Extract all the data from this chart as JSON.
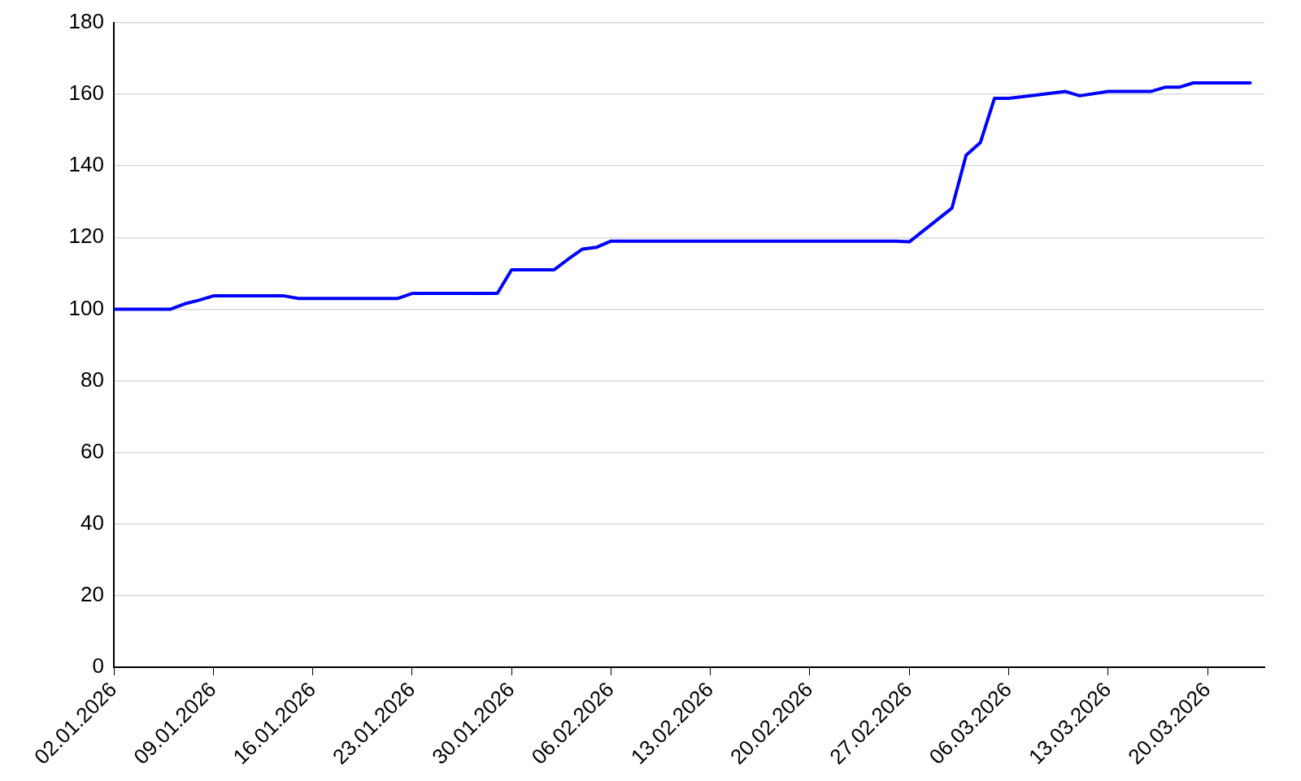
{
  "chart_data": {
    "type": "line",
    "x": [
      "2026-01-02",
      "2026-01-06",
      "2026-01-07",
      "2026-01-08",
      "2026-01-09",
      "2026-01-14",
      "2026-01-15",
      "2026-01-22",
      "2026-01-23",
      "2026-01-29",
      "2026-01-30",
      "2026-02-02",
      "2026-02-03",
      "2026-02-04",
      "2026-02-05",
      "2026-02-06",
      "2026-02-26",
      "2026-02-27",
      "2026-03-02",
      "2026-03-03",
      "2026-03-04",
      "2026-03-05",
      "2026-03-06",
      "2026-03-10",
      "2026-03-11",
      "2026-03-13",
      "2026-03-16",
      "2026-03-17",
      "2026-03-18",
      "2026-03-19",
      "2026-03-23"
    ],
    "series": [
      {
        "color": "#0000ff",
        "values": [
          100,
          100,
          101.5,
          102.5,
          103.7,
          103.7,
          103,
          103,
          104.4,
          104.4,
          111,
          111,
          114,
          116.8,
          117.3,
          119,
          119,
          118.8,
          128.2,
          143,
          146.5,
          158.9,
          158.9,
          160.8,
          159.6,
          160.8,
          160.8,
          162,
          162,
          163.2,
          163.2
        ]
      }
    ],
    "xlim": [
      "2026-01-02",
      "2026-03-24"
    ],
    "xticks": [
      {
        "value": "2026-01-02",
        "label": "02.01.2026"
      },
      {
        "value": "2026-01-09",
        "label": "09.01.2026"
      },
      {
        "value": "2026-01-16",
        "label": "16.01.2026"
      },
      {
        "value": "2026-01-23",
        "label": "23.01.2026"
      },
      {
        "value": "2026-01-30",
        "label": "30.01.2026"
      },
      {
        "value": "2026-02-06",
        "label": "06.02.2026"
      },
      {
        "value": "2026-02-13",
        "label": "13.02.2026"
      },
      {
        "value": "2026-02-20",
        "label": "20.02.2026"
      },
      {
        "value": "2026-02-27",
        "label": "27.02.2026"
      },
      {
        "value": "2026-03-06",
        "label": "06.03.2026"
      },
      {
        "value": "2026-03-13",
        "label": "13.03.2026"
      },
      {
        "value": "2026-03-20",
        "label": "20.03.2026"
      }
    ],
    "ylim": [
      0,
      180
    ],
    "yticks": [
      0,
      20,
      40,
      60,
      80,
      100,
      120,
      140,
      160,
      180
    ],
    "grid": "y",
    "legend": false,
    "marker": "none",
    "line_style": "solid"
  }
}
